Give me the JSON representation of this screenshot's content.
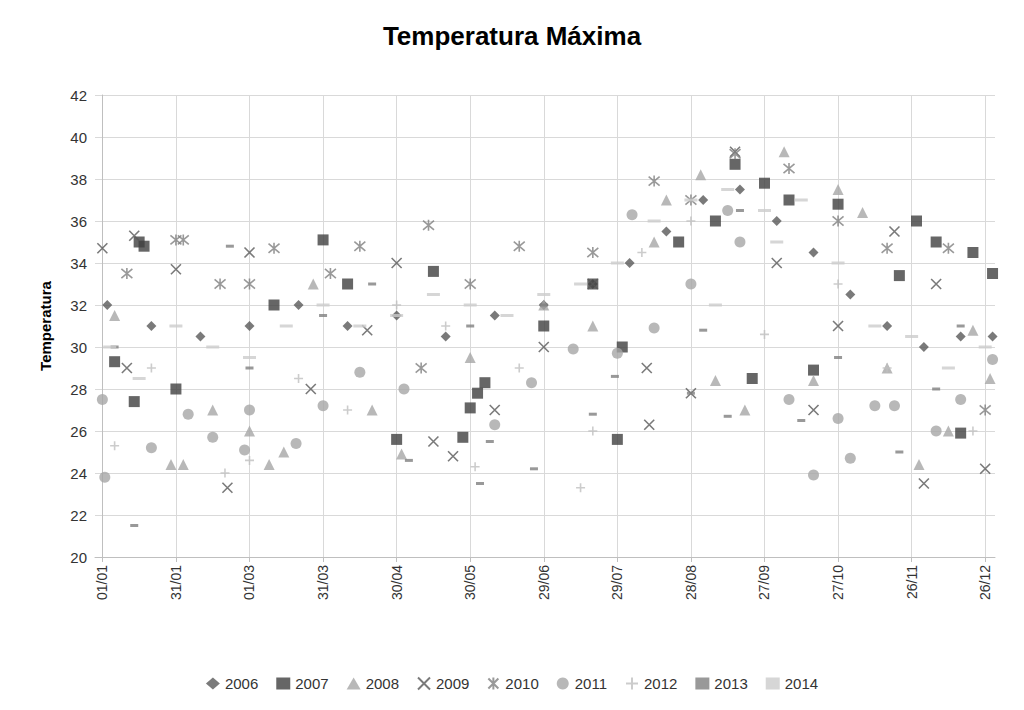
{
  "chart_data": {
    "type": "scatter",
    "title": "Temperatura Máxima",
    "y_label": "Temperatura",
    "xlim": [
      -3,
      364
    ],
    "xticks": [
      {
        "value": 0,
        "label": "01/01"
      },
      {
        "value": 30,
        "label": "31/01"
      },
      {
        "value": 60,
        "label": "01/03"
      },
      {
        "value": 90,
        "label": "31/03"
      },
      {
        "value": 120,
        "label": "30/04"
      },
      {
        "value": 150,
        "label": "30/05"
      },
      {
        "value": 180,
        "label": "29/06"
      },
      {
        "value": 210,
        "label": "29/07"
      },
      {
        "value": 240,
        "label": "28/08"
      },
      {
        "value": 270,
        "label": "27/09"
      },
      {
        "value": 300,
        "label": "27/10"
      },
      {
        "value": 330,
        "label": "26/11"
      },
      {
        "value": 360,
        "label": "26/12"
      }
    ],
    "ylim": [
      20,
      42
    ],
    "yticks": [
      20,
      22,
      24,
      26,
      28,
      30,
      32,
      34,
      36,
      38,
      40,
      42
    ],
    "grid": true,
    "legend": "bottom",
    "series": [
      {
        "name": "2006",
        "color": "#595959",
        "marker": "diamond",
        "x": [
          2,
          20,
          40,
          60,
          80,
          100,
          120,
          140,
          160,
          180,
          200,
          215,
          230,
          245,
          260,
          275,
          290,
          305,
          320,
          335,
          350,
          363
        ],
        "values": [
          32,
          31,
          30.5,
          31,
          32,
          31,
          31.5,
          30.5,
          31.5,
          32,
          33,
          34,
          35.5,
          37,
          37.5,
          36,
          34.5,
          32.5,
          31,
          30,
          30.5,
          30.5
        ]
      },
      {
        "name": "2007",
        "color": "#404040",
        "marker": "square",
        "x": [
          5,
          13,
          15,
          17,
          30,
          70,
          90,
          100,
          120,
          135,
          147,
          150,
          153,
          156,
          180,
          200,
          210,
          212,
          235,
          250,
          258,
          265,
          270,
          280,
          290,
          300,
          325,
          332,
          340,
          350,
          355,
          363
        ],
        "values": [
          29.3,
          27.4,
          35,
          34.8,
          28,
          32,
          35.1,
          33,
          25.6,
          33.6,
          25.7,
          27.1,
          27.8,
          28.3,
          31,
          33,
          25.6,
          30,
          35,
          36,
          38.7,
          28.5,
          37.8,
          37,
          28.9,
          36.8,
          33.4,
          36,
          35,
          25.9,
          34.5,
          33.5
        ]
      },
      {
        "name": "2008",
        "color": "#a6a6a6",
        "marker": "triangle",
        "x": [
          5,
          28,
          33,
          45,
          60,
          68,
          74,
          86,
          110,
          122,
          150,
          180,
          200,
          225,
          230,
          244,
          250,
          262,
          278,
          290,
          300,
          310,
          320,
          333,
          345,
          355,
          362
        ],
        "values": [
          31.5,
          24.4,
          24.4,
          27,
          26,
          24.4,
          25,
          33,
          27,
          24.9,
          29.5,
          32,
          31,
          35,
          37,
          38.2,
          28.4,
          27,
          39.3,
          28.4,
          37.5,
          36.4,
          29,
          24.4,
          26,
          30.8,
          28.5
        ]
      },
      {
        "name": "2009",
        "color": "#595959",
        "marker": "x",
        "x": [
          0,
          10,
          13,
          30,
          51,
          60,
          85,
          108,
          120,
          135,
          143,
          160,
          180,
          200,
          222,
          223,
          240,
          258,
          275,
          290,
          300,
          323,
          335,
          340,
          360
        ],
        "values": [
          34.7,
          29,
          35.3,
          33.7,
          23.3,
          34.5,
          28,
          30.8,
          34,
          25.5,
          24.8,
          27,
          30,
          33,
          29,
          26.3,
          27.8,
          39.3,
          34,
          27,
          31,
          35.5,
          23.5,
          33,
          24.2
        ]
      },
      {
        "name": "2010",
        "color": "#7f7f7f",
        "marker": "star",
        "x": [
          10,
          30,
          33,
          48,
          60,
          70,
          93,
          105,
          130,
          133,
          150,
          170,
          200,
          225,
          240,
          258,
          280,
          300,
          320,
          345,
          360
        ],
        "values": [
          33.5,
          35.1,
          35.1,
          33,
          33,
          34.7,
          33.5,
          34.8,
          29,
          35.8,
          33,
          34.8,
          34.5,
          37.9,
          37,
          39.2,
          38.5,
          36,
          34.7,
          34.7,
          27
        ]
      },
      {
        "name": "2011",
        "color": "#a6a6a6",
        "marker": "circle",
        "x": [
          0,
          1,
          20,
          35,
          45,
          58,
          60,
          79,
          90,
          105,
          123,
          160,
          175,
          192,
          210,
          216,
          225,
          240,
          255,
          260,
          280,
          290,
          300,
          305,
          315,
          323,
          340,
          350,
          363
        ],
        "values": [
          27.5,
          23.8,
          25.2,
          26.8,
          25.7,
          25.1,
          27,
          25.4,
          27.2,
          28.8,
          28,
          26.3,
          28.3,
          29.9,
          29.7,
          36.3,
          30.9,
          33,
          36.5,
          35,
          27.5,
          23.9,
          26.6,
          24.7,
          27.2,
          27.2,
          26,
          27.5,
          29.4
        ]
      },
      {
        "name": "2012",
        "color": "#bfbfbf",
        "marker": "plus",
        "x": [
          5,
          20,
          50,
          60,
          80,
          100,
          120,
          140,
          152,
          170,
          195,
          200,
          220,
          240,
          270,
          300,
          320,
          355
        ],
        "values": [
          25.3,
          29,
          24,
          24.6,
          28.5,
          27,
          32,
          31,
          24.3,
          29,
          23.3,
          26,
          34.5,
          36,
          30.6,
          33,
          29,
          26
        ]
      },
      {
        "name": "2013",
        "color": "#808080",
        "marker": "dash",
        "x": [
          5,
          13,
          52,
          60,
          90,
          110,
          125,
          150,
          154,
          158,
          176,
          180,
          200,
          209,
          240,
          245,
          255,
          260,
          285,
          300,
          325,
          340,
          350
        ],
        "values": [
          30,
          21.5,
          34.8,
          29,
          31.5,
          33,
          24.6,
          31,
          23.5,
          25.5,
          24.2,
          32,
          26.8,
          28.6,
          27.8,
          30.8,
          26.7,
          36.5,
          26.5,
          29.5,
          25,
          28,
          31
        ]
      },
      {
        "name": "2014",
        "color": "#cccccc",
        "marker": "longdash",
        "x": [
          3,
          15,
          30,
          45,
          60,
          75,
          90,
          105,
          120,
          135,
          150,
          165,
          180,
          195,
          210,
          225,
          240,
          250,
          255,
          270,
          275,
          285,
          300,
          315,
          330,
          345,
          360
        ],
        "values": [
          30,
          28.5,
          31,
          30,
          29.5,
          31,
          32,
          31,
          31.5,
          32.5,
          32,
          31.5,
          32.5,
          33,
          34,
          36,
          37,
          32,
          37.5,
          36.5,
          35,
          37,
          34,
          31,
          30.5,
          29,
          30
        ]
      }
    ]
  }
}
